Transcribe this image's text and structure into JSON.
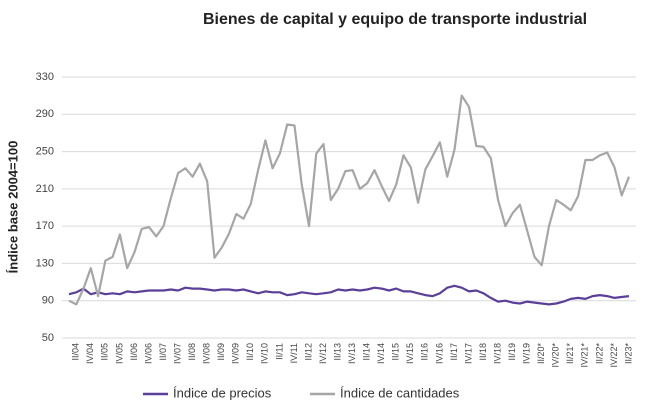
{
  "chart_data": {
    "type": "line",
    "title": "Bienes de capital y equipo de transporte industrial",
    "y_label": "Índice base 2004=100",
    "categories": [
      null,
      "II/04",
      null,
      "IV/04",
      null,
      "II/05",
      null,
      "IV/05",
      null,
      "II/06",
      null,
      "IV/06",
      null,
      "II/07",
      null,
      "IV/07",
      null,
      "II/08",
      null,
      "IV/08",
      null,
      "II/09",
      null,
      "IV/09",
      null,
      "II/10",
      null,
      "IV/10",
      null,
      "II/11",
      null,
      "IV/11",
      null,
      "II/12",
      null,
      "IV/12",
      null,
      "II/13",
      null,
      "IV/13",
      null,
      "II/14",
      null,
      "IV/14",
      null,
      "II/15",
      null,
      "IV/15",
      null,
      "II/16",
      null,
      "IV/16",
      null,
      "II/17",
      null,
      "IV/17",
      null,
      "II/18",
      null,
      "IV/18",
      null,
      "II/19",
      null,
      "IV/19",
      null,
      "II/20*",
      null,
      "IV/20*",
      null,
      "II/21*",
      null,
      "IV/21*",
      null,
      "II/22*",
      null,
      "IV/22*",
      null,
      "II/23*"
    ],
    "series": [
      {
        "name": "Índice de precios",
        "color": "#5b3f99",
        "values": [
          97,
          99,
          103,
          97,
          99,
          97,
          98,
          97,
          100,
          99,
          100,
          101,
          101,
          101,
          102,
          101,
          104,
          103,
          103,
          102,
          101,
          102,
          102,
          101,
          102,
          100,
          98,
          100,
          99,
          99,
          96,
          97,
          99,
          98,
          97,
          98,
          99,
          102,
          101,
          102,
          101,
          102,
          104,
          103,
          101,
          103,
          100,
          100,
          98,
          96,
          95,
          98,
          104,
          106,
          104,
          100,
          101,
          98,
          93,
          89,
          90,
          88,
          87,
          89,
          88,
          87,
          86,
          87,
          89,
          92,
          93,
          92,
          95,
          96,
          95,
          93,
          94,
          95
        ]
      },
      {
        "name": "Índice de cantidades",
        "color": "#a6a6a6",
        "values": [
          90,
          86,
          103,
          125,
          95,
          133,
          137,
          161,
          125,
          142,
          167,
          169,
          159,
          170,
          200,
          227,
          232,
          223,
          237,
          218,
          136,
          147,
          162,
          183,
          178,
          194,
          230,
          262,
          232,
          248,
          279,
          278,
          215,
          170,
          248,
          258,
          198,
          210,
          229,
          230,
          210,
          216,
          230,
          213,
          197,
          215,
          246,
          233,
          195,
          231,
          245,
          260,
          223,
          252,
          310,
          298,
          256,
          255,
          243,
          198,
          170,
          184,
          193,
          165,
          137,
          128,
          170,
          198,
          193,
          187,
          202,
          241,
          241,
          246,
          249,
          233,
          203,
          223
        ]
      }
    ],
    "ylim": [
      50,
      330
    ],
    "yticks": [
      50,
      90,
      130,
      170,
      210,
      250,
      290,
      330
    ],
    "grid": true,
    "legend": "bottom"
  }
}
